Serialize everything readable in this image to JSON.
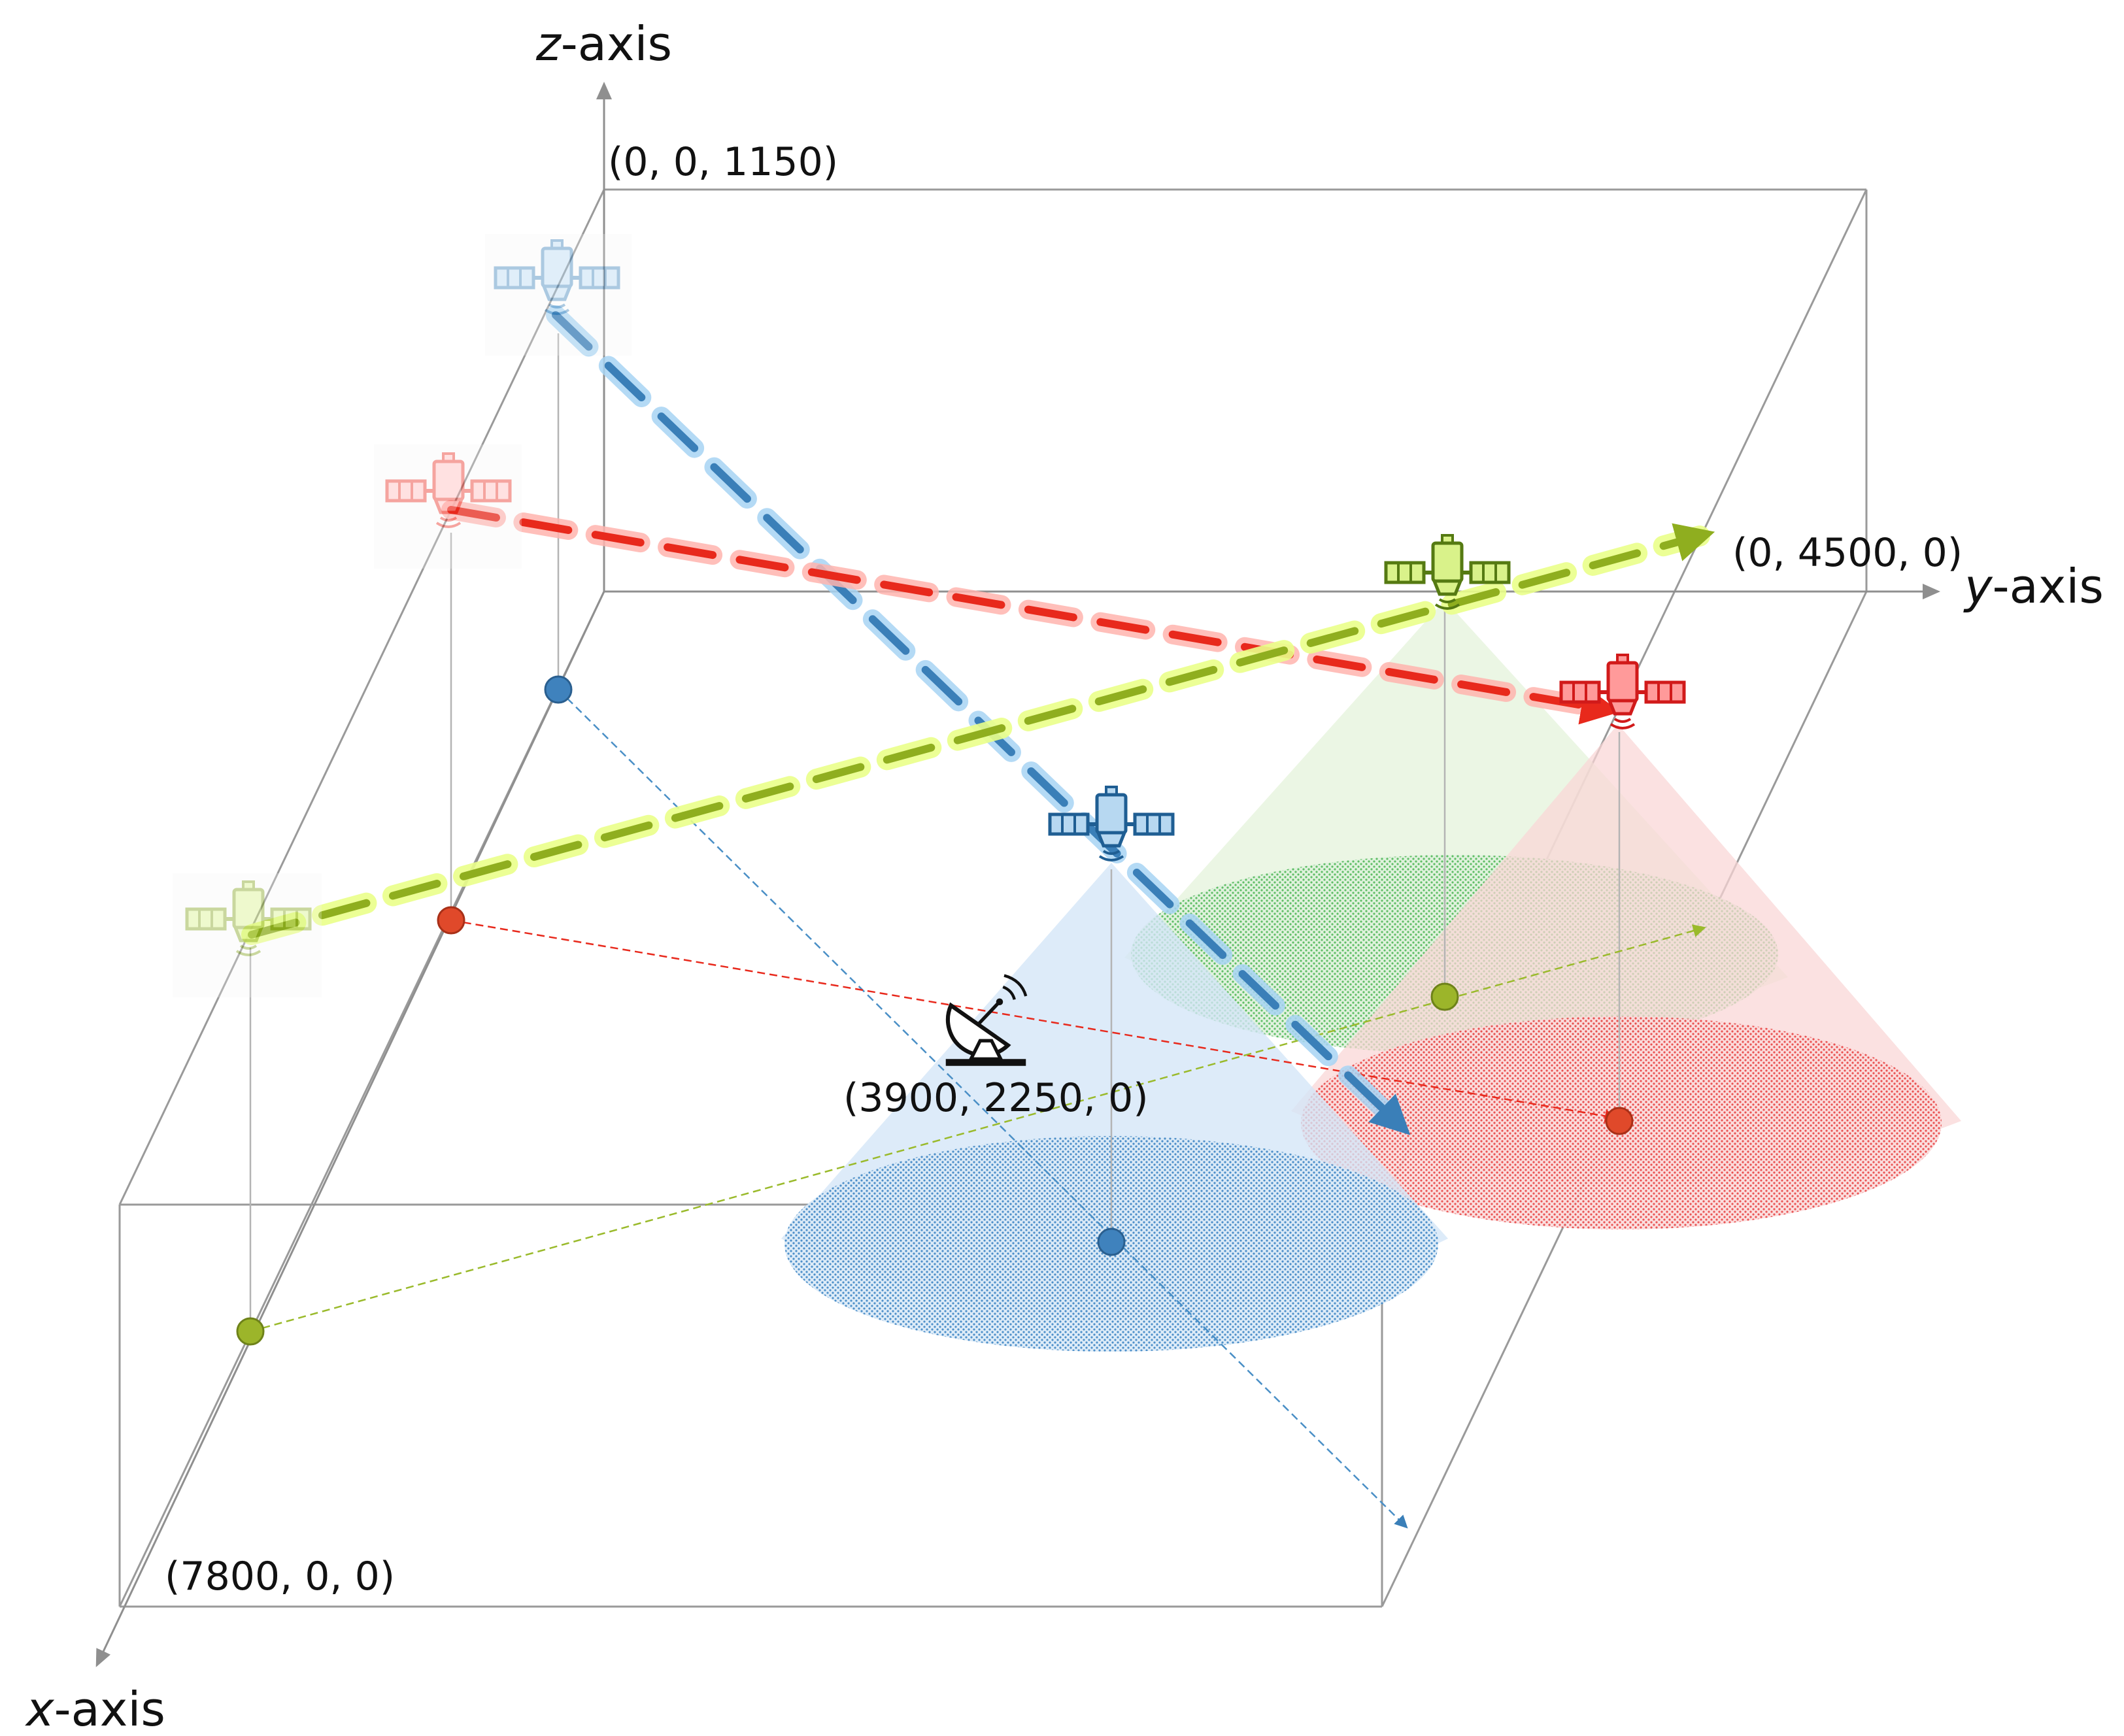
{
  "axes": {
    "x": {
      "letter": "x",
      "suffix": "-axis"
    },
    "y": {
      "letter": "y",
      "suffix": "-axis"
    },
    "z": {
      "letter": "z",
      "suffix": "-axis"
    }
  },
  "corner_labels": {
    "z_top": "(0,  0,  1150)",
    "y_end": "(0,  4500,  0)",
    "x_end": "(7800,  0,  0)"
  },
  "ground_station": {
    "label": "(3900,  2250,  0)",
    "icon": "satellite-dish-icon"
  },
  "colors": {
    "blue": "#4a8fc6",
    "red": "#e8291c",
    "green": "#9aba2b",
    "blue_glow": "#9fd0f2",
    "red_glow": "#ffb3ad",
    "green_glow": "#e6ff88",
    "box": "#8f8f8f"
  },
  "satellites": [
    {
      "id": "blue",
      "icon": "satellite-icon"
    },
    {
      "id": "red",
      "icon": "satellite-icon"
    },
    {
      "id": "green",
      "icon": "satellite-icon"
    }
  ]
}
